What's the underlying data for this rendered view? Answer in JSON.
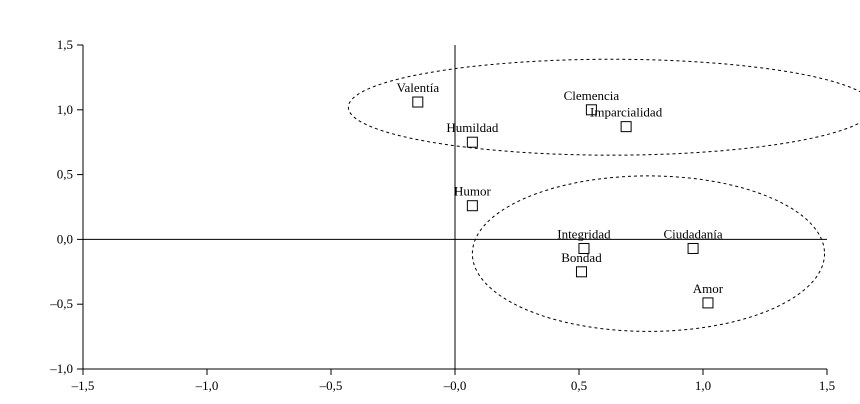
{
  "chart_data": {
    "type": "scatter",
    "xlim": [
      -1.5,
      1.5
    ],
    "ylim": [
      -1.0,
      1.5
    ],
    "x_ticks": [
      -1.5,
      -1.0,
      -0.5,
      0.0,
      0.5,
      1.0,
      1.5
    ],
    "y_ticks": [
      -1.0,
      -0.5,
      0.0,
      0.5,
      1.0,
      1.5
    ],
    "x_tick_labels": [
      "–1,5",
      "–1,0",
      "–0,5",
      "–0,0",
      "0,5",
      "1,0",
      "1,5"
    ],
    "y_tick_labels": [
      "–1,0",
      "–0,5",
      "0,0",
      "0,5",
      "1,0",
      "1,5"
    ],
    "grid": false,
    "points": [
      {
        "label": "Valentía",
        "x": -0.15,
        "y": 1.06
      },
      {
        "label": "Clemencia",
        "x": 0.55,
        "y": 1.0
      },
      {
        "label": "Imparcialidad",
        "x": 0.69,
        "y": 0.87
      },
      {
        "label": "Humildad",
        "x": 0.07,
        "y": 0.75
      },
      {
        "label": "Humor",
        "x": 0.07,
        "y": 0.26
      },
      {
        "label": "Integridad",
        "x": 0.52,
        "y": -0.07
      },
      {
        "label": "Ciudadanía",
        "x": 0.96,
        "y": -0.07
      },
      {
        "label": "Bondad",
        "x": 0.51,
        "y": -0.25
      },
      {
        "label": "Amor",
        "x": 1.02,
        "y": -0.49
      }
    ],
    "clusters": [
      {
        "cx": 0.63,
        "cy": 1.02,
        "rx": 1.06,
        "ry": 0.37
      },
      {
        "cx": 0.78,
        "cy": -0.11,
        "rx": 0.71,
        "ry": 0.6
      }
    ]
  }
}
